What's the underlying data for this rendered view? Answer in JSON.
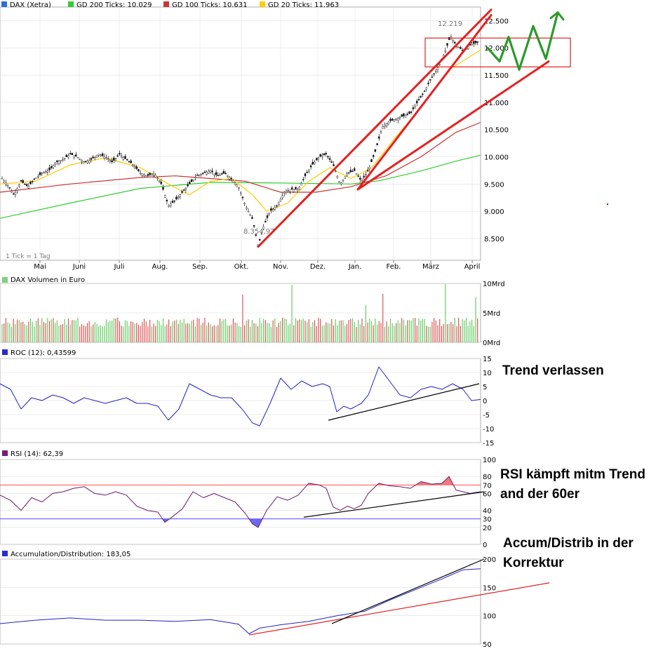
{
  "chart_data": [
    {
      "type": "candlestick",
      "title": "DAX (Xetra)",
      "legend": [
        {
          "label": "DAX (Xetra)",
          "color": "#2a6fdb"
        },
        {
          "label": "GD 200 Ticks: 10.029",
          "color": "#33cc33"
        },
        {
          "label": "GD 100 Ticks: 10.631",
          "color": "#cc3333"
        },
        {
          "label": "GD 20 Ticks: 11.963",
          "color": "#ffcc00"
        }
      ],
      "footnote": "1 Tick = 1 Tag",
      "x_ticks": [
        "Mai",
        "Juni",
        "Juli",
        "Aug.",
        "Sep.",
        "Okt.",
        "Nov.",
        "Dez.",
        "Jan.",
        "Feb.",
        "März",
        "April"
      ],
      "y_ticks": [
        "8.500",
        "9.000",
        "9.500",
        "10.000",
        "10.500",
        "11.000",
        "11.500",
        "12.000",
        "12.500"
      ],
      "ylim": [
        8100,
        12750
      ],
      "high_label": "12.219",
      "low_label": "8.354,97",
      "price_path": [
        [
          0,
          9650
        ],
        [
          10,
          9500
        ],
        [
          20,
          9300
        ],
        [
          30,
          9550
        ],
        [
          40,
          9450
        ],
        [
          50,
          9600
        ],
        [
          60,
          9700
        ],
        [
          70,
          9750
        ],
        [
          80,
          9900
        ],
        [
          90,
          9950
        ],
        [
          100,
          10050
        ],
        [
          110,
          10000
        ],
        [
          120,
          9900
        ],
        [
          130,
          9950
        ],
        [
          140,
          10050
        ],
        [
          150,
          10000
        ],
        [
          160,
          9900
        ],
        [
          170,
          10050
        ],
        [
          180,
          9950
        ],
        [
          190,
          9850
        ],
        [
          200,
          9700
        ],
        [
          210,
          9650
        ],
        [
          220,
          9700
        ],
        [
          230,
          9500
        ],
        [
          240,
          9100
        ],
        [
          250,
          9200
        ],
        [
          260,
          9350
        ],
        [
          270,
          9500
        ],
        [
          280,
          9650
        ],
        [
          290,
          9700
        ],
        [
          300,
          9750
        ],
        [
          310,
          9650
        ],
        [
          320,
          9700
        ],
        [
          330,
          9600
        ],
        [
          340,
          9450
        ],
        [
          350,
          9100
        ],
        [
          360,
          8850
        ],
        [
          368,
          8355
        ],
        [
          375,
          8700
        ],
        [
          385,
          9000
        ],
        [
          395,
          9100
        ],
        [
          405,
          9350
        ],
        [
          415,
          9400
        ],
        [
          425,
          9400
        ],
        [
          435,
          9650
        ],
        [
          445,
          9850
        ],
        [
          455,
          10000
        ],
        [
          465,
          10050
        ],
        [
          475,
          9850
        ],
        [
          485,
          9500
        ],
        [
          495,
          9700
        ],
        [
          505,
          9750
        ],
        [
          515,
          9550
        ],
        [
          525,
          9750
        ],
        [
          535,
          10100
        ],
        [
          545,
          10550
        ],
        [
          555,
          10650
        ],
        [
          565,
          10700
        ],
        [
          575,
          10750
        ],
        [
          585,
          10800
        ],
        [
          595,
          11000
        ],
        [
          605,
          11200
        ],
        [
          615,
          11450
        ],
        [
          625,
          11650
        ],
        [
          635,
          11950
        ],
        [
          642,
          12219
        ],
        [
          650,
          12050
        ],
        [
          660,
          11950
        ],
        [
          670,
          12050
        ],
        [
          680,
          12100
        ]
      ],
      "ma200_path": [
        [
          0,
          8870
        ],
        [
          100,
          9150
        ],
        [
          200,
          9420
        ],
        [
          300,
          9530
        ],
        [
          400,
          9520
        ],
        [
          500,
          9500
        ],
        [
          540,
          9560
        ],
        [
          600,
          9740
        ],
        [
          650,
          9920
        ],
        [
          685,
          10030
        ]
      ],
      "ma100_path": [
        [
          0,
          9350
        ],
        [
          100,
          9500
        ],
        [
          200,
          9620
        ],
        [
          250,
          9650
        ],
        [
          300,
          9600
        ],
        [
          350,
          9550
        ],
        [
          400,
          9350
        ],
        [
          450,
          9350
        ],
        [
          500,
          9450
        ],
        [
          550,
          9650
        ],
        [
          600,
          10000
        ],
        [
          650,
          10450
        ],
        [
          685,
          10631
        ]
      ],
      "ma20_path": [
        [
          0,
          9500
        ],
        [
          50,
          9550
        ],
        [
          100,
          9850
        ],
        [
          150,
          9980
        ],
        [
          200,
          9800
        ],
        [
          240,
          9500
        ],
        [
          270,
          9300
        ],
        [
          300,
          9550
        ],
        [
          330,
          9600
        ],
        [
          360,
          9300
        ],
        [
          380,
          9000
        ],
        [
          410,
          9150
        ],
        [
          440,
          9550
        ],
        [
          470,
          9800
        ],
        [
          500,
          9600
        ],
        [
          530,
          9800
        ],
        [
          560,
          10300
        ],
        [
          600,
          10900
        ],
        [
          640,
          11600
        ],
        [
          685,
          11963
        ]
      ],
      "trend_lines": [
        [
          [
            368,
            8350
          ],
          [
            700,
            12700
          ]
        ],
        [
          [
            510,
            9400
          ],
          [
            700,
            12600
          ]
        ],
        [
          [
            510,
            9400
          ],
          [
            782,
            11750
          ]
        ]
      ],
      "highlight_box_values": [
        11650,
        12180
      ],
      "forecast_path": [
        [
          695,
          12000
        ],
        [
          712,
          11750
        ],
        [
          725,
          12200
        ],
        [
          740,
          11600
        ],
        [
          760,
          12400
        ],
        [
          778,
          11800
        ],
        [
          795,
          12650
        ]
      ]
    },
    {
      "type": "bar",
      "title": "DAX Volumen in Euro",
      "y_ticks": [
        "10Mrd",
        "5Mrd",
        "0Mrd"
      ],
      "ylim": [
        0,
        10
      ]
    },
    {
      "type": "line",
      "title": "ROC (12): 0,43599",
      "y_ticks": [
        "15",
        "10",
        "5",
        "0",
        "-5",
        "-10",
        "-15"
      ],
      "ylim": [
        -15,
        15
      ],
      "series_path": [
        [
          0,
          6
        ],
        [
          15,
          4
        ],
        [
          30,
          -3
        ],
        [
          45,
          1
        ],
        [
          60,
          0
        ],
        [
          75,
          2
        ],
        [
          90,
          1
        ],
        [
          105,
          -1
        ],
        [
          120,
          1
        ],
        [
          135,
          0
        ],
        [
          150,
          -1
        ],
        [
          165,
          0
        ],
        [
          180,
          1
        ],
        [
          195,
          -1
        ],
        [
          210,
          -1
        ],
        [
          225,
          -2
        ],
        [
          240,
          -7
        ],
        [
          255,
          -3
        ],
        [
          270,
          6
        ],
        [
          285,
          4
        ],
        [
          300,
          2
        ],
        [
          315,
          1
        ],
        [
          330,
          1
        ],
        [
          345,
          -3
        ],
        [
          360,
          -8
        ],
        [
          370,
          -9
        ],
        [
          385,
          -1
        ],
        [
          400,
          8
        ],
        [
          415,
          4
        ],
        [
          430,
          7
        ],
        [
          445,
          5
        ],
        [
          460,
          6
        ],
        [
          470,
          5
        ],
        [
          480,
          -4
        ],
        [
          490,
          -2
        ],
        [
          500,
          -3
        ],
        [
          515,
          -1
        ],
        [
          525,
          2
        ],
        [
          540,
          12
        ],
        [
          555,
          7
        ],
        [
          570,
          2
        ],
        [
          585,
          1
        ],
        [
          600,
          4
        ],
        [
          615,
          5
        ],
        [
          630,
          4
        ],
        [
          645,
          6
        ],
        [
          660,
          4
        ],
        [
          672,
          0
        ],
        [
          685,
          0.4
        ]
      ],
      "trend_line": [
        [
          [
            468,
            -7
          ],
          [
            683,
            6
          ]
        ]
      ]
    },
    {
      "type": "line",
      "title": "RSI (14): 62,39",
      "y_ticks": [
        "100",
        "80",
        "60",
        "40",
        "20",
        "0"
      ],
      "ylim": [
        0,
        100
      ],
      "ref_levels": [
        {
          "label": "70",
          "value": 70,
          "color": "#ff3333"
        },
        {
          "label": "30",
          "value": 30,
          "color": "#3333ff"
        }
      ],
      "series_path": [
        [
          0,
          58
        ],
        [
          15,
          52
        ],
        [
          30,
          40
        ],
        [
          45,
          55
        ],
        [
          60,
          50
        ],
        [
          75,
          60
        ],
        [
          90,
          62
        ],
        [
          105,
          66
        ],
        [
          120,
          68
        ],
        [
          135,
          60
        ],
        [
          150,
          58
        ],
        [
          165,
          62
        ],
        [
          180,
          58
        ],
        [
          195,
          45
        ],
        [
          210,
          40
        ],
        [
          225,
          38
        ],
        [
          235,
          26
        ],
        [
          245,
          32
        ],
        [
          260,
          42
        ],
        [
          275,
          62
        ],
        [
          290,
          55
        ],
        [
          305,
          60
        ],
        [
          320,
          55
        ],
        [
          335,
          50
        ],
        [
          350,
          36
        ],
        [
          360,
          24
        ],
        [
          368,
          20
        ],
        [
          380,
          40
        ],
        [
          395,
          56
        ],
        [
          410,
          52
        ],
        [
          425,
          58
        ],
        [
          440,
          72
        ],
        [
          455,
          70
        ],
        [
          465,
          66
        ],
        [
          475,
          44
        ],
        [
          485,
          40
        ],
        [
          495,
          45
        ],
        [
          505,
          42
        ],
        [
          515,
          46
        ],
        [
          525,
          60
        ],
        [
          540,
          72
        ],
        [
          555,
          69
        ],
        [
          570,
          68
        ],
        [
          585,
          66
        ],
        [
          600,
          74
        ],
        [
          615,
          71
        ],
        [
          630,
          72
        ],
        [
          640,
          80
        ],
        [
          650,
          64
        ],
        [
          660,
          62
        ],
        [
          670,
          60
        ],
        [
          685,
          62
        ]
      ],
      "trend_line": [
        [
          [
            433,
            32
          ],
          [
            690,
            62
          ]
        ]
      ]
    },
    {
      "type": "line",
      "title": "Accumulation/Distribution: 183,05",
      "y_ticks": [
        "200",
        "150",
        "100",
        "50"
      ],
      "ylim": [
        50,
        200
      ],
      "series_path": [
        [
          0,
          86
        ],
        [
          50,
          92
        ],
        [
          100,
          96
        ],
        [
          150,
          92
        ],
        [
          200,
          92
        ],
        [
          250,
          90
        ],
        [
          300,
          93
        ],
        [
          340,
          85
        ],
        [
          355,
          68
        ],
        [
          370,
          78
        ],
        [
          400,
          84
        ],
        [
          440,
          90
        ],
        [
          480,
          100
        ],
        [
          520,
          108
        ],
        [
          560,
          130
        ],
        [
          600,
          150
        ],
        [
          630,
          165
        ],
        [
          660,
          181
        ],
        [
          685,
          183
        ]
      ],
      "trend_lines": [
        [
          [
            355,
            66
          ],
          [
            783,
            158
          ]
        ],
        [
          [
            473,
            86
          ],
          [
            690,
            200
          ]
        ]
      ]
    }
  ],
  "annotations": {
    "trend": "Trend verlassen",
    "rsi_line1": "RSI kämpft mitm Trend",
    "rsi_line2": "and der 60er",
    "ad_line1": "Accum/Distrib in der",
    "ad_line2": "Korrektur"
  }
}
